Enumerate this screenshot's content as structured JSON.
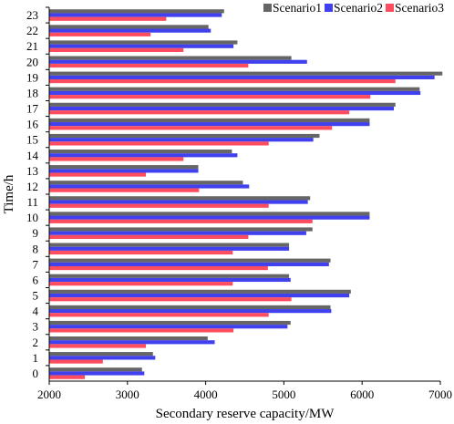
{
  "chart_data": {
    "type": "bar",
    "orientation": "horizontal",
    "xlabel": "Secondary reserve capacity/MW",
    "ylabel": "Time/h",
    "xlim": [
      2000,
      7000
    ],
    "xticks": [
      2000,
      3000,
      4000,
      5000,
      6000,
      7000
    ],
    "grid": false,
    "legend_position": "top-right",
    "categories": [
      "0",
      "1",
      "2",
      "3",
      "4",
      "5",
      "6",
      "7",
      "8",
      "9",
      "10",
      "11",
      "12",
      "13",
      "14",
      "15",
      "16",
      "17",
      "18",
      "19",
      "20",
      "21",
      "22",
      "23"
    ],
    "series": [
      {
        "name": "Scenario1",
        "color": "#666666",
        "values": [
          3180,
          3320,
          4020,
          5080,
          5590,
          5850,
          5060,
          5590,
          5060,
          5360,
          6090,
          5330,
          4470,
          3900,
          4330,
          5450,
          6090,
          6420,
          6730,
          7020,
          5090,
          4400,
          4030,
          4230
        ]
      },
      {
        "name": "Scenario2",
        "color": "#4040ee",
        "values": [
          3210,
          3350,
          4110,
          5040,
          5600,
          5830,
          5080,
          5570,
          5060,
          5280,
          6090,
          5300,
          4550,
          3900,
          4400,
          5370,
          6090,
          6400,
          6740,
          6920,
          5290,
          4350,
          4060,
          4200
        ]
      },
      {
        "name": "Scenario3",
        "color": "#ff4d60",
        "values": [
          2450,
          2680,
          3230,
          4350,
          4800,
          5090,
          4340,
          4790,
          4340,
          4540,
          5360,
          4800,
          3910,
          3230,
          3710,
          4800,
          5610,
          5830,
          6100,
          6420,
          4540,
          3710,
          3290,
          3490
        ]
      }
    ]
  }
}
